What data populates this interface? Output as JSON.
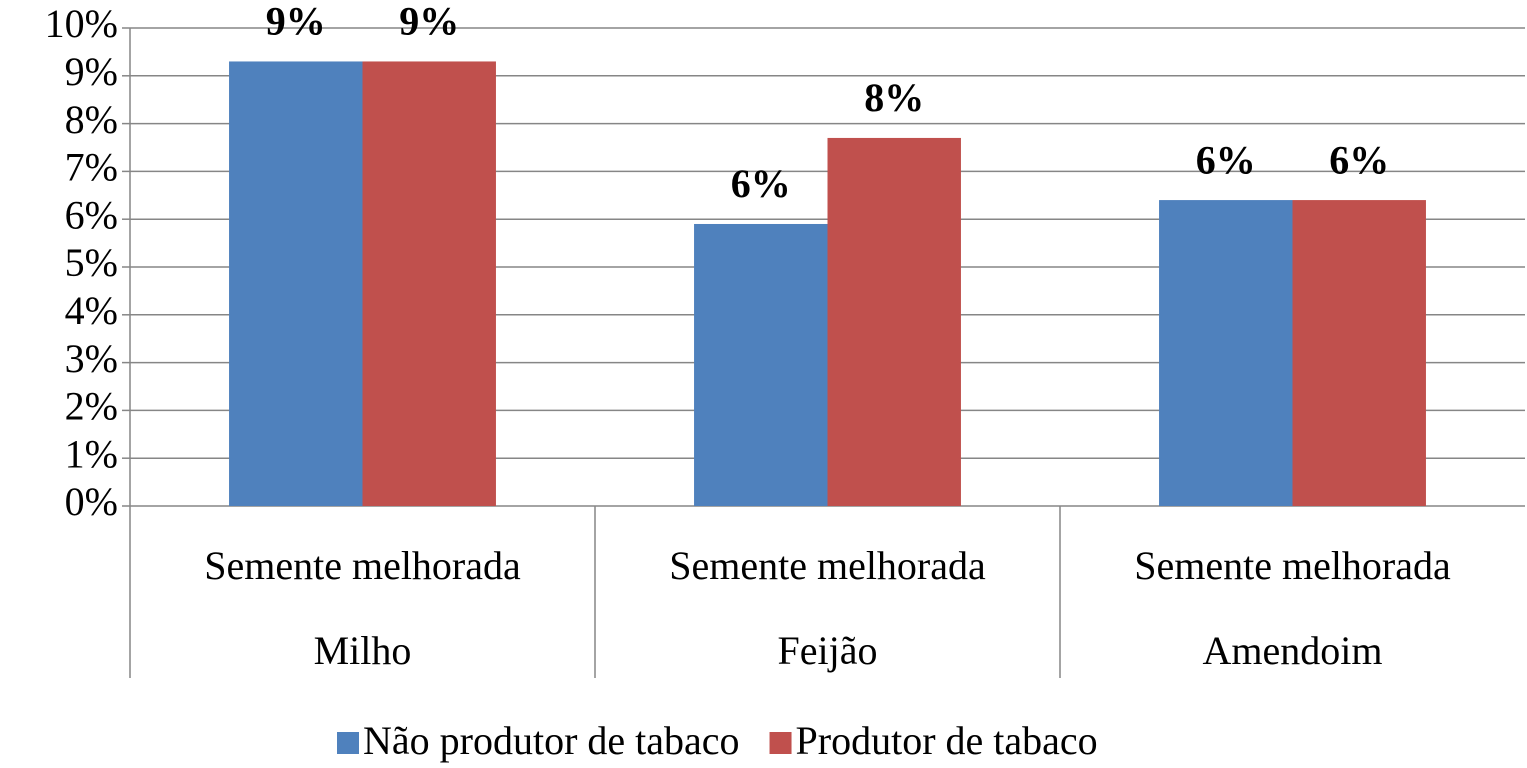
{
  "chart_data": {
    "type": "bar",
    "categories": [
      "Semente melhorada",
      "Semente melhorada",
      "Semente melhorada"
    ],
    "category_groups": [
      "Milho",
      "Feijão",
      "Amendoim"
    ],
    "series": [
      {
        "name": "Não produtor de tabaco",
        "color": "#4f81bd",
        "values": [
          9.3,
          5.9,
          6.4
        ],
        "value_labels": [
          "9%",
          "6%",
          "6%"
        ]
      },
      {
        "name": "Produtor de tabaco",
        "color": "#c0504d",
        "values": [
          9.3,
          7.7,
          6.4
        ],
        "value_labels": [
          "9%",
          "8%",
          "6%"
        ]
      }
    ],
    "ylim": [
      0,
      10
    ],
    "yticks": [
      {
        "value": 0,
        "label": "0%"
      },
      {
        "value": 1,
        "label": "1%"
      },
      {
        "value": 2,
        "label": "2%"
      },
      {
        "value": 3,
        "label": "3%"
      },
      {
        "value": 4,
        "label": "4%"
      },
      {
        "value": 5,
        "label": "5%"
      },
      {
        "value": 6,
        "label": "6%"
      },
      {
        "value": 7,
        "label": "7%"
      },
      {
        "value": 8,
        "label": "8%"
      },
      {
        "value": 9,
        "label": "9%"
      },
      {
        "value": 10,
        "label": "10%"
      }
    ],
    "grid": true,
    "legend": "bottom"
  }
}
